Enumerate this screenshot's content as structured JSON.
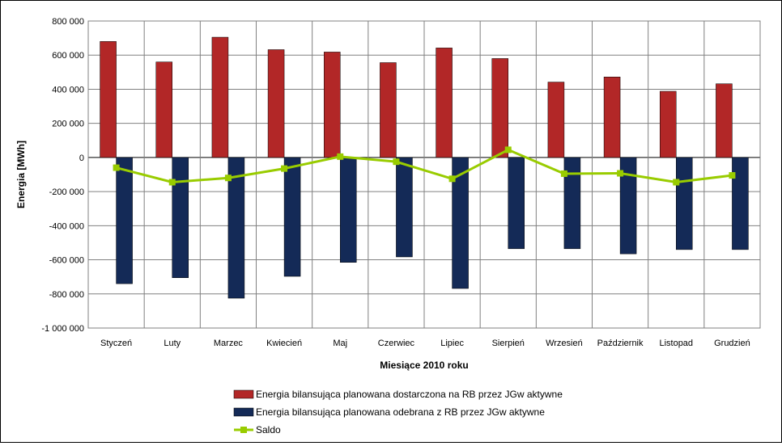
{
  "chart_data": {
    "type": "bar",
    "title": "",
    "xlabel": "Miesiące 2010 roku",
    "ylabel": "Energia [MWh]",
    "ylim": [
      -1000000,
      800000
    ],
    "yticks": [
      800000,
      600000,
      400000,
      200000,
      0,
      -200000,
      -400000,
      -600000,
      -800000,
      -1000000
    ],
    "ytick_labels": [
      "800 000",
      "600 000",
      "400 000",
      "200 000",
      "0",
      "-200 000",
      "-400 000",
      "-600 000",
      "-800 000",
      "-1 000 000"
    ],
    "grid": true,
    "legend_position": "bottom",
    "categories": [
      "Styczeń",
      "Luty",
      "Marzec",
      "Kwiecień",
      "Maj",
      "Czerwiec",
      "Lipiec",
      "Sierpień",
      "Wrzesień",
      "Październik",
      "Listopad",
      "Grudzień"
    ],
    "series": [
      {
        "name": "Energia bilansująca planowana dostarczona na RB przez JGw aktywne",
        "type": "bar",
        "color": "#B22727",
        "values": [
          680000,
          560000,
          705000,
          632000,
          618000,
          556000,
          642000,
          580000,
          442000,
          472000,
          388000,
          432000
        ]
      },
      {
        "name": "Energia bilansująca planowana odebrana z RB przez JGw aktywne",
        "type": "bar",
        "color": "#142A57",
        "values": [
          -740000,
          -705000,
          -825000,
          -697000,
          -615000,
          -583000,
          -768000,
          -535000,
          -535000,
          -565000,
          -540000,
          -540000
        ]
      },
      {
        "name": "Saldo",
        "type": "line",
        "color": "#99CC00",
        "marker": "square",
        "values": [
          -60000,
          -145000,
          -120000,
          -65000,
          5000,
          -25000,
          -125000,
          45000,
          -95000,
          -93000,
          -145000,
          -105000
        ]
      }
    ]
  }
}
